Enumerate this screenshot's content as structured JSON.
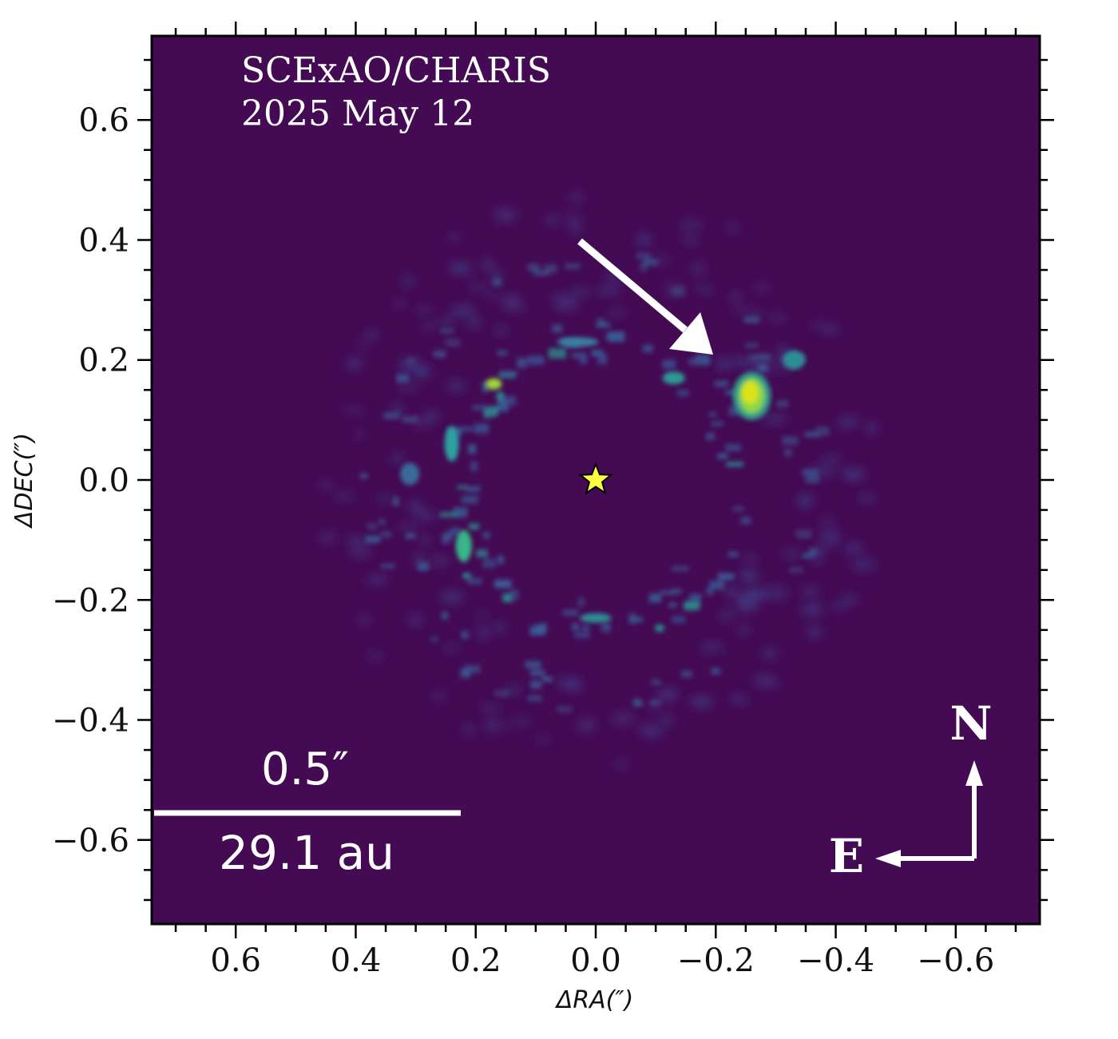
{
  "panel": {
    "instrument": "SCExAO/CHARIS",
    "date": "2025 May 12"
  },
  "axes": {
    "xlabel": "ΔRA(″)",
    "ylabel": "ΔDEC(″)",
    "xlim": [
      0.74,
      -0.74
    ],
    "ylim": [
      -0.74,
      0.74
    ],
    "x_ticks": [
      0.6,
      0.4,
      0.2,
      0.0,
      -0.2,
      -0.4,
      -0.6
    ],
    "x_tick_labels": [
      "0.6",
      "0.4",
      "0.2",
      "0.0",
      "−0.2",
      "−0.4",
      "−0.6"
    ],
    "y_ticks": [
      0.6,
      0.4,
      0.2,
      0.0,
      -0.2,
      -0.4,
      -0.6
    ],
    "y_tick_labels": [
      "0.6",
      "0.4",
      "0.2",
      "0.0",
      "−0.2",
      "−0.4",
      "−0.6"
    ]
  },
  "scale_bar": {
    "angular": "0.5″",
    "physical": "29.1 au"
  },
  "compass": {
    "north": "N",
    "east": "E"
  },
  "colors": {
    "background": "#440b54",
    "ring": "#3a5a96",
    "ring_bright": "#2b8c8c",
    "hotspot": "#dce319",
    "star": "#ffff40",
    "overlay": "#ffffff"
  },
  "markers": {
    "star_position": [
      0.0,
      0.0
    ],
    "companion_position": [
      -0.26,
      0.14
    ],
    "arrow_from": [
      0.03,
      0.4
    ],
    "arrow_to": [
      -0.2,
      0.21
    ]
  }
}
